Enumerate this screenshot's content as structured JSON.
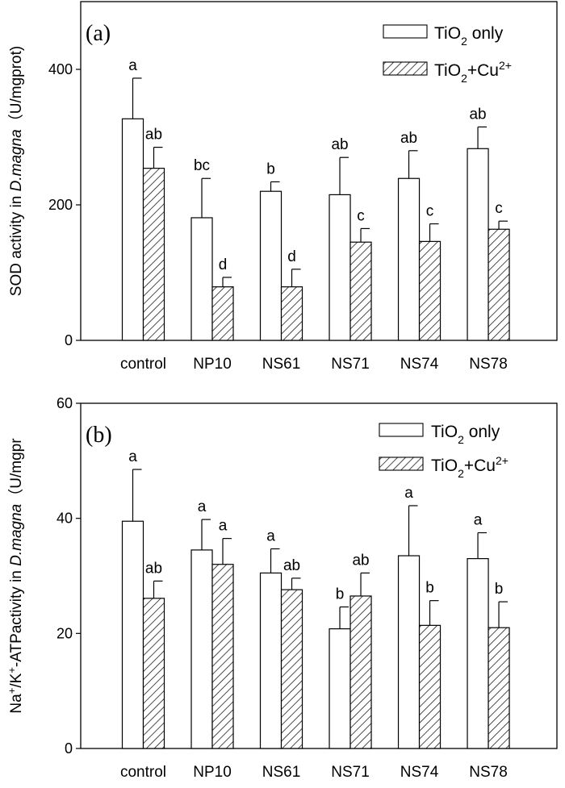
{
  "chart_data": [
    {
      "type": "bar",
      "panel_label": "(a)",
      "ylabel": {
        "prefix": "SOD activity in ",
        "species": "D.magna",
        "suffix": "（U/mgprot)"
      },
      "ylim": [
        0,
        500
      ],
      "yticks": [
        0,
        200,
        400
      ],
      "categories": [
        "control",
        "NP10",
        "NS61",
        "NS71",
        "NS74",
        "NS78"
      ],
      "legend": {
        "position": "top-right",
        "entries": [
          {
            "base": "TiO",
            "sub": "2",
            "rest": " only",
            "sup": "",
            "pattern": "open"
          },
          {
            "base": "TiO",
            "sub": "2",
            "rest": "+Cu",
            "sup": "2+",
            "pattern": "hatched"
          }
        ]
      },
      "series": [
        {
          "values": [
            327,
            181,
            220,
            215,
            239,
            283
          ],
          "errors": [
            60,
            58,
            14,
            55,
            41,
            32
          ],
          "letters": [
            "a",
            "bc",
            "b",
            "ab",
            "ab",
            "ab"
          ]
        },
        {
          "values": [
            254,
            79,
            79,
            145,
            146,
            164
          ],
          "errors": [
            31,
            14,
            26,
            20,
            26,
            12
          ],
          "letters": [
            "ab",
            "d",
            "d",
            "c",
            "c",
            "c"
          ]
        }
      ]
    },
    {
      "type": "bar",
      "panel_label": "(b)",
      "ylabel": {
        "prefix": "Na+/K+-ATPactivity in ",
        "species": "D.magna",
        "suffix": "（U/mgpr"
      },
      "ylim": [
        0,
        60
      ],
      "yticks": [
        0,
        20,
        40,
        60
      ],
      "categories": [
        "control",
        "NP10",
        "NS61",
        "NS71",
        "NS74",
        "NS78"
      ],
      "legend": {
        "position": "top-right",
        "entries": [
          {
            "base": "TiO",
            "sub": "2",
            "rest": " only",
            "sup": "",
            "pattern": "open"
          },
          {
            "base": "TiO",
            "sub": "2",
            "rest": "+Cu",
            "sup": "2+",
            "pattern": "hatched"
          }
        ]
      },
      "series": [
        {
          "values": [
            39.5,
            34.5,
            30.5,
            20.8,
            33.5,
            33.0
          ],
          "errors": [
            9.0,
            5.3,
            4.2,
            3.8,
            8.7,
            4.5
          ],
          "letters": [
            "a",
            "a",
            "a",
            "b",
            "a",
            "a"
          ]
        },
        {
          "values": [
            26.1,
            32.0,
            27.6,
            26.5,
            21.4,
            21.0
          ],
          "errors": [
            3.0,
            4.5,
            2.0,
            4.0,
            4.3,
            4.5
          ],
          "letters": [
            "ab",
            "a",
            "ab",
            "ab",
            "b",
            "b"
          ]
        }
      ]
    }
  ]
}
